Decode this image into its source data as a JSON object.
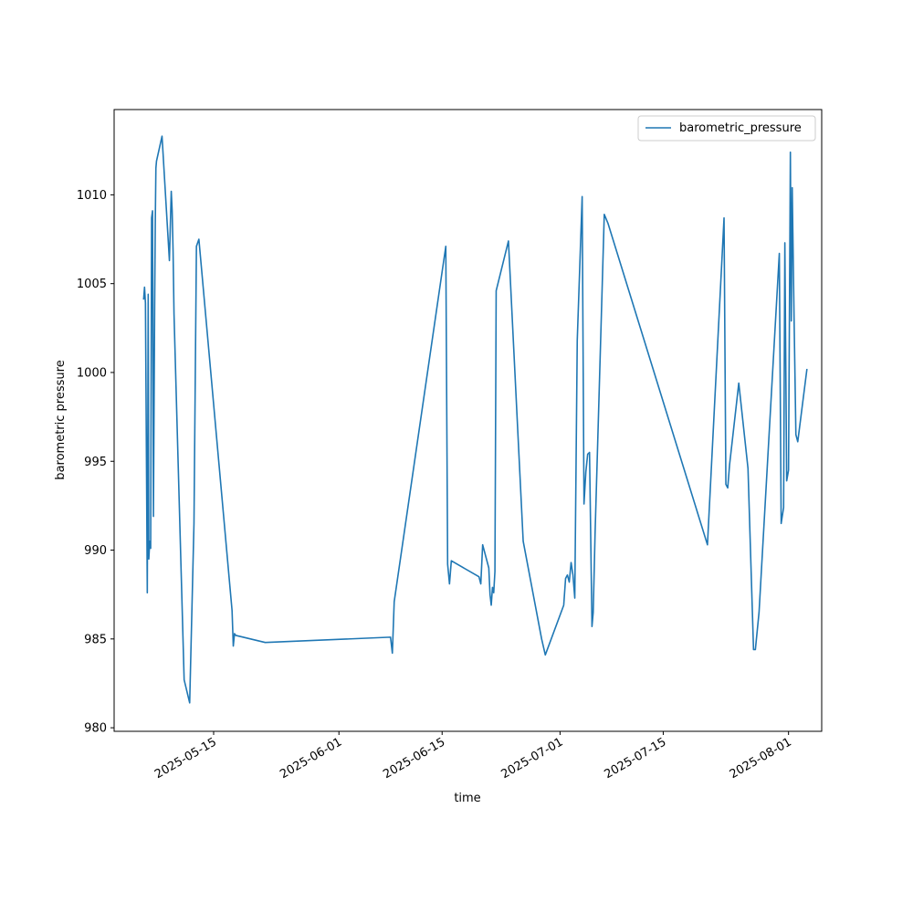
{
  "chart_data": {
    "type": "line",
    "title": "",
    "xlabel": "time",
    "ylabel": "barometric pressure",
    "x_ticks": [
      "2025-05-15",
      "2025-06-01",
      "2025-06-15",
      "2025-07-01",
      "2025-07-15",
      "2025-08-01"
    ],
    "y_ticks": [
      980,
      985,
      990,
      995,
      1000,
      1005,
      1010
    ],
    "xlim": [
      "2025-05-01T12:00",
      "2025-08-05T12:00"
    ],
    "ylim": [
      979.8,
      1014.8
    ],
    "grid": false,
    "legend_position": "top-right",
    "line_color": "#1f77b4",
    "series": [
      {
        "name": "barometric_pressure",
        "x": [
          "2025-05-05T12:00",
          "2025-05-05T15:00",
          "2025-05-05T18:00",
          "2025-05-06T00:00",
          "2025-05-06T03:00",
          "2025-05-06T05:00",
          "2025-05-06T08:00",
          "2025-05-06T11:00",
          "2025-05-06T14:00",
          "2025-05-06T17:00",
          "2025-05-06T20:00",
          "2025-05-07T00:00",
          "2025-05-07T02:00",
          "2025-05-07T04:00",
          "2025-05-07T06:00",
          "2025-05-08T00:00",
          "2025-05-09T00:00",
          "2025-05-09T06:00",
          "2025-05-09T09:00",
          "2025-05-09T12:00",
          "2025-05-09T15:00",
          "2025-05-11T00:00",
          "2025-05-11T18:00",
          "2025-05-12T08:00",
          "2025-05-12T16:00",
          "2025-05-13T00:00",
          "2025-05-17T12:00",
          "2025-05-17T16:00",
          "2025-05-17T20:00",
          "2025-05-18T00:00",
          "2025-05-22T00:00",
          "2025-06-08T00:00",
          "2025-06-08T06:00",
          "2025-06-08T12:00",
          "2025-06-15T12:00",
          "2025-06-15T18:00",
          "2025-06-16T00:00",
          "2025-06-16T06:00",
          "2025-06-20T00:00",
          "2025-06-20T06:00",
          "2025-06-20T12:00",
          "2025-06-21T08:00",
          "2025-06-21T12:00",
          "2025-06-21T16:00",
          "2025-06-21T20:00",
          "2025-06-22T00:00",
          "2025-06-22T04:00",
          "2025-06-22T08:00",
          "2025-06-24T00:00",
          "2025-06-26T00:00",
          "2025-06-28T12:00",
          "2025-06-29T00:00",
          "2025-07-01T12:00",
          "2025-07-01T18:00",
          "2025-07-02T00:00",
          "2025-07-02T06:00",
          "2025-07-02T12:00",
          "2025-07-02T18:00",
          "2025-07-03T00:00",
          "2025-07-03T08:00",
          "2025-07-04T00:00",
          "2025-07-04T06:00",
          "2025-07-04T12:00",
          "2025-07-04T18:00",
          "2025-07-05T00:00",
          "2025-07-05T08:00",
          "2025-07-05T12:00",
          "2025-07-05T18:00",
          "2025-07-07T00:00",
          "2025-07-07T12:00",
          "2025-07-21T00:00",
          "2025-07-23T06:00",
          "2025-07-23T12:00",
          "2025-07-23T18:00",
          "2025-07-24T00:00",
          "2025-07-25T06:00",
          "2025-07-26T12:00",
          "2025-07-27T06:00",
          "2025-07-27T12:00",
          "2025-07-28T00:00",
          "2025-07-30T18:00",
          "2025-07-31T00:00",
          "2025-07-31T08:00",
          "2025-07-31T12:00",
          "2025-07-31T18:00",
          "2025-08-01T00:00",
          "2025-08-01T06:00",
          "2025-08-01T09:00",
          "2025-08-01T12:00",
          "2025-08-01T18:00",
          "2025-08-02T00:00",
          "2025-08-02T06:00",
          "2025-08-03T12:00"
        ],
        "values": [
          1004.1,
          1004.8,
          1003.9,
          987.6,
          1004.4,
          989.5,
          990.5,
          990.1,
          1008.7,
          1009.1,
          991.9,
          1003.8,
          1008.4,
          1011.5,
          1011.9,
          1013.3,
          1006.3,
          1010.2,
          1009.1,
          1006.8,
          1003.3,
          982.7,
          981.4,
          991.5,
          1007.1,
          1007.5,
          986.6,
          984.6,
          985.3,
          985.2,
          984.8,
          985.1,
          984.2,
          987.1,
          1007.1,
          989.2,
          988.1,
          989.4,
          988.5,
          988.1,
          990.3,
          989.0,
          987.5,
          986.9,
          987.9,
          987.6,
          988.8,
          1004.6,
          1007.4,
          990.5,
          985.0,
          984.1,
          986.9,
          988.4,
          988.6,
          988.2,
          989.3,
          988.6,
          987.3,
          1001.8,
          1009.9,
          992.6,
          994.4,
          995.4,
          995.5,
          985.7,
          986.5,
          990.9,
          1008.9,
          1008.4,
          990.3,
          1008.7,
          993.7,
          993.5,
          994.8,
          999.4,
          994.6,
          984.4,
          984.4,
          986.5,
          1006.7,
          991.5,
          992.4,
          1007.3,
          993.9,
          994.5,
          1012.4,
          1002.9,
          1010.4,
          1003.1,
          996.5,
          996.1,
          1000.2
        ]
      }
    ]
  }
}
